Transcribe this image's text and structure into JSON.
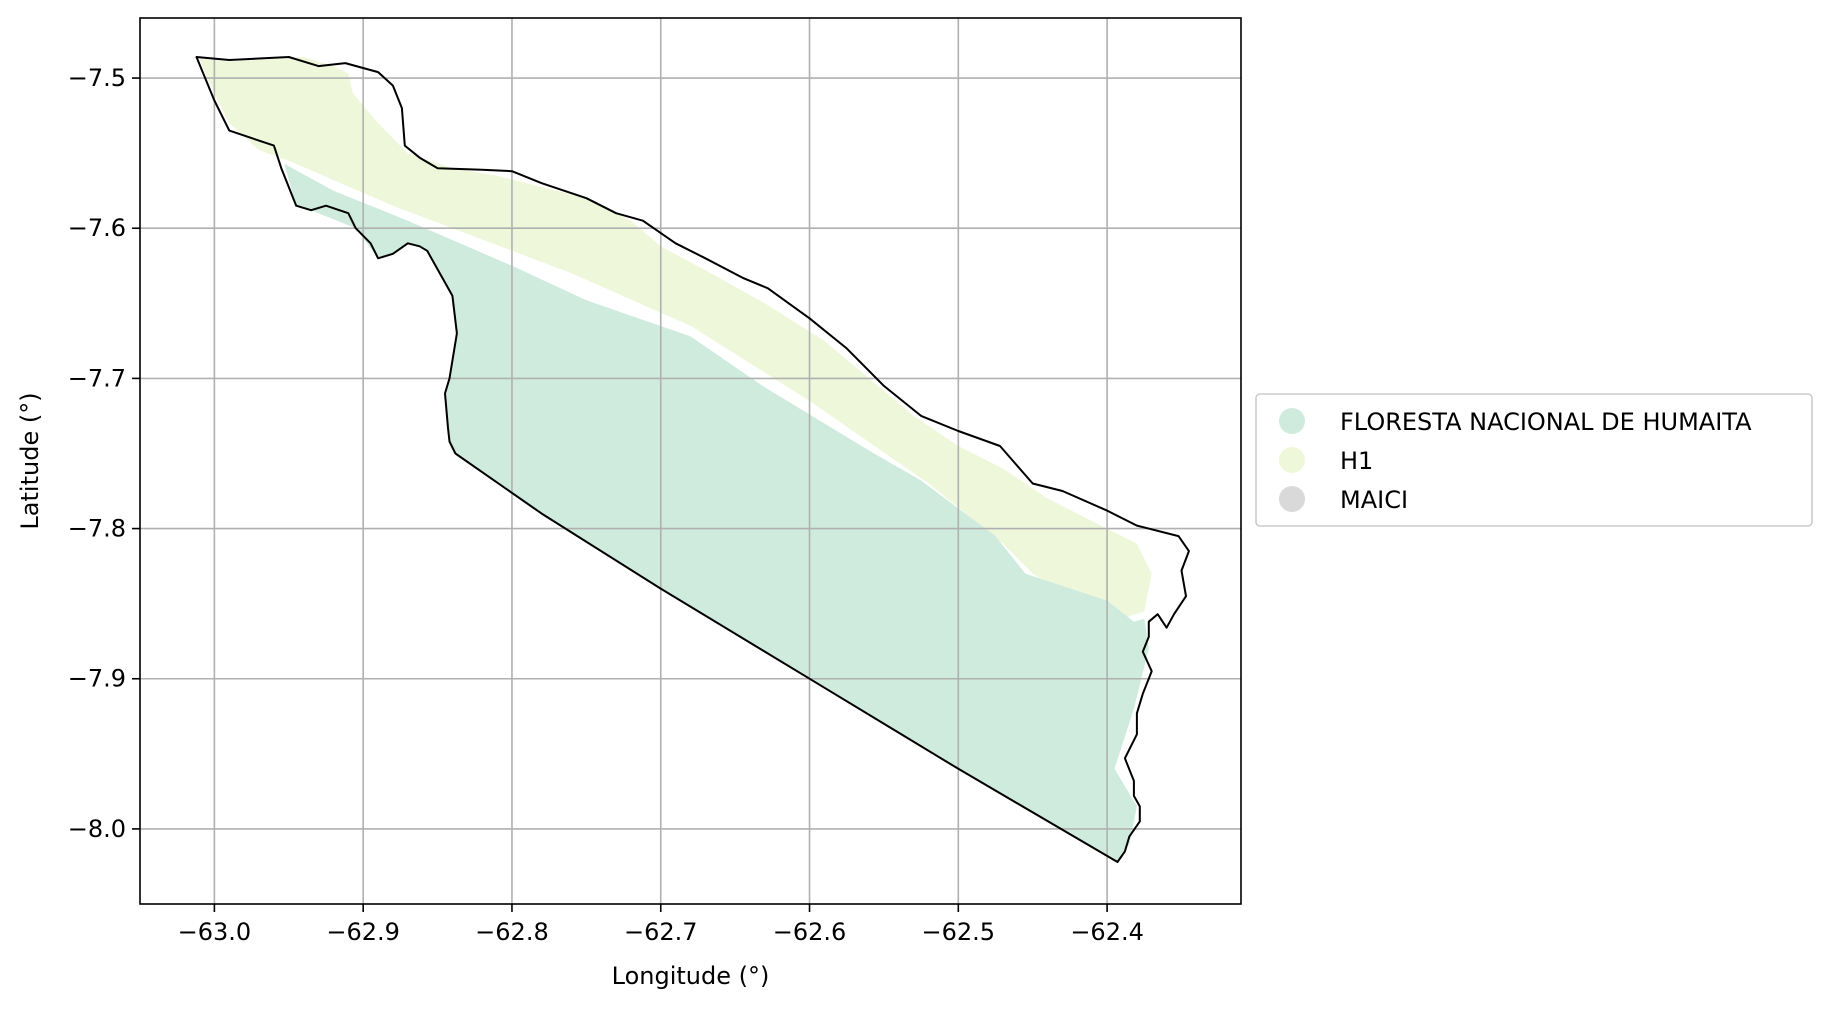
{
  "chart_data": {
    "type": "map",
    "xlabel": "Longitude (°)",
    "ylabel": "Latitude (°)",
    "xlim": [
      -63.05,
      -62.31
    ],
    "ylim": [
      -8.05,
      -7.46
    ],
    "grid": true,
    "x_ticks": [
      {
        "value": -63.0,
        "label": "−63.0"
      },
      {
        "value": -62.9,
        "label": "−62.9"
      },
      {
        "value": -62.8,
        "label": "−62.8"
      },
      {
        "value": -62.7,
        "label": "−62.7"
      },
      {
        "value": -62.6,
        "label": "−62.6"
      },
      {
        "value": -62.5,
        "label": "−62.5"
      },
      {
        "value": -62.4,
        "label": "−62.4"
      }
    ],
    "y_ticks": [
      {
        "value": -7.5,
        "label": "−7.5"
      },
      {
        "value": -7.6,
        "label": "−7.6"
      },
      {
        "value": -7.7,
        "label": "−7.7"
      },
      {
        "value": -7.8,
        "label": "−7.8"
      },
      {
        "value": -7.9,
        "label": "−7.9"
      },
      {
        "value": -8.0,
        "label": "−8.0"
      }
    ],
    "legend_position": "center-right",
    "legend": [
      {
        "label": "FLORESTA NACIONAL DE HUMAITA",
        "color": "#cfebde"
      },
      {
        "label": "H1",
        "color": "#eef7da"
      },
      {
        "label": "MAICI",
        "color": "#d9d9d9"
      }
    ],
    "regions": [
      {
        "name": "H1",
        "color": "#eef7da",
        "coordinates": [
          [
            -63.01,
            -7.487
          ],
          [
            -62.99,
            -7.489
          ],
          [
            -62.94,
            -7.486
          ],
          [
            -62.92,
            -7.492
          ],
          [
            -62.91,
            -7.497
          ],
          [
            -62.907,
            -7.51
          ],
          [
            -62.89,
            -7.53
          ],
          [
            -62.87,
            -7.55
          ],
          [
            -62.84,
            -7.56
          ],
          [
            -62.81,
            -7.565
          ],
          [
            -62.79,
            -7.57
          ],
          [
            -62.75,
            -7.58
          ],
          [
            -62.72,
            -7.595
          ],
          [
            -62.7,
            -7.612
          ],
          [
            -62.67,
            -7.628
          ],
          [
            -62.63,
            -7.65
          ],
          [
            -62.59,
            -7.675
          ],
          [
            -62.56,
            -7.7
          ],
          [
            -62.53,
            -7.725
          ],
          [
            -62.5,
            -7.745
          ],
          [
            -62.47,
            -7.76
          ],
          [
            -62.44,
            -7.78
          ],
          [
            -62.41,
            -7.795
          ],
          [
            -62.38,
            -7.81
          ],
          [
            -62.37,
            -7.83
          ],
          [
            -62.375,
            -7.855
          ],
          [
            -62.39,
            -7.86
          ],
          [
            -62.42,
            -7.85
          ],
          [
            -62.45,
            -7.83
          ],
          [
            -62.47,
            -7.81
          ],
          [
            -62.52,
            -7.77
          ],
          [
            -62.6,
            -7.715
          ],
          [
            -62.68,
            -7.665
          ],
          [
            -62.76,
            -7.63
          ],
          [
            -62.88,
            -7.585
          ],
          [
            -62.95,
            -7.555
          ],
          [
            -62.97,
            -7.548
          ],
          [
            -62.99,
            -7.53
          ],
          [
            -63.005,
            -7.5
          ]
        ]
      },
      {
        "name": "FLORESTA NACIONAL DE HUMAITA",
        "color": "#cfebde",
        "coordinates": [
          [
            -62.953,
            -7.557
          ],
          [
            -62.92,
            -7.575
          ],
          [
            -62.87,
            -7.595
          ],
          [
            -62.8,
            -7.625
          ],
          [
            -62.75,
            -7.648
          ],
          [
            -62.68,
            -7.672
          ],
          [
            -62.63,
            -7.706
          ],
          [
            -62.56,
            -7.748
          ],
          [
            -62.525,
            -7.768
          ],
          [
            -62.475,
            -7.805
          ],
          [
            -62.455,
            -7.83
          ],
          [
            -62.4,
            -7.848
          ],
          [
            -62.382,
            -7.862
          ],
          [
            -62.375,
            -7.86
          ],
          [
            -62.372,
            -7.88
          ],
          [
            -62.382,
            -7.92
          ],
          [
            -62.395,
            -7.96
          ],
          [
            -62.38,
            -7.985
          ],
          [
            -62.385,
            -8.01
          ],
          [
            -62.393,
            -8.022
          ],
          [
            -62.5,
            -7.96
          ],
          [
            -62.6,
            -7.9
          ],
          [
            -62.7,
            -7.84
          ],
          [
            -62.78,
            -7.79
          ],
          [
            -62.838,
            -7.75
          ],
          [
            -62.842,
            -7.742
          ],
          [
            -62.843,
            -7.733
          ],
          [
            -62.845,
            -7.71
          ],
          [
            -62.842,
            -7.7
          ],
          [
            -62.837,
            -7.67
          ],
          [
            -62.84,
            -7.645
          ],
          [
            -62.857,
            -7.615
          ],
          [
            -62.862,
            -7.612
          ],
          [
            -62.87,
            -7.61
          ],
          [
            -62.88,
            -7.617
          ],
          [
            -62.89,
            -7.62
          ],
          [
            -62.905,
            -7.6
          ],
          [
            -62.935,
            -7.588
          ],
          [
            -62.945,
            -7.585
          ]
        ]
      }
    ],
    "boundary": {
      "name": "outline",
      "color": "#000000",
      "coordinates": [
        [
          -63.012,
          -7.486
        ],
        [
          -62.99,
          -7.488
        ],
        [
          -62.95,
          -7.486
        ],
        [
          -62.93,
          -7.492
        ],
        [
          -62.912,
          -7.49
        ],
        [
          -62.89,
          -7.496
        ],
        [
          -62.88,
          -7.505
        ],
        [
          -62.874,
          -7.52
        ],
        [
          -62.872,
          -7.545
        ],
        [
          -62.862,
          -7.553
        ],
        [
          -62.85,
          -7.56
        ],
        [
          -62.82,
          -7.561
        ],
        [
          -62.8,
          -7.562
        ],
        [
          -62.78,
          -7.57
        ],
        [
          -62.75,
          -7.58
        ],
        [
          -62.73,
          -7.59
        ],
        [
          -62.712,
          -7.595
        ],
        [
          -62.69,
          -7.61
        ],
        [
          -62.67,
          -7.62
        ],
        [
          -62.645,
          -7.633
        ],
        [
          -62.628,
          -7.64
        ],
        [
          -62.6,
          -7.66
        ],
        [
          -62.575,
          -7.68
        ],
        [
          -62.55,
          -7.705
        ],
        [
          -62.525,
          -7.725
        ],
        [
          -62.5,
          -7.735
        ],
        [
          -62.472,
          -7.745
        ],
        [
          -62.45,
          -7.77
        ],
        [
          -62.43,
          -7.775
        ],
        [
          -62.4,
          -7.788
        ],
        [
          -62.38,
          -7.798
        ],
        [
          -62.352,
          -7.805
        ],
        [
          -62.345,
          -7.815
        ],
        [
          -62.35,
          -7.828
        ],
        [
          -62.347,
          -7.845
        ],
        [
          -62.355,
          -7.857
        ],
        [
          -62.36,
          -7.866
        ],
        [
          -62.366,
          -7.857
        ],
        [
          -62.372,
          -7.862
        ],
        [
          -62.372,
          -7.872
        ],
        [
          -62.376,
          -7.882
        ],
        [
          -62.37,
          -7.895
        ],
        [
          -62.376,
          -7.91
        ],
        [
          -62.38,
          -7.923
        ],
        [
          -62.38,
          -7.937
        ],
        [
          -62.388,
          -7.953
        ],
        [
          -62.382,
          -7.968
        ],
        [
          -62.382,
          -7.978
        ],
        [
          -62.378,
          -7.985
        ],
        [
          -62.378,
          -7.995
        ],
        [
          -62.385,
          -8.005
        ],
        [
          -62.388,
          -8.015
        ],
        [
          -62.393,
          -8.022
        ],
        [
          -62.5,
          -7.96
        ],
        [
          -62.6,
          -7.9
        ],
        [
          -62.7,
          -7.84
        ],
        [
          -62.78,
          -7.79
        ],
        [
          -62.838,
          -7.75
        ],
        [
          -62.842,
          -7.742
        ],
        [
          -62.843,
          -7.733
        ],
        [
          -62.845,
          -7.71
        ],
        [
          -62.842,
          -7.7
        ],
        [
          -62.837,
          -7.67
        ],
        [
          -62.84,
          -7.645
        ],
        [
          -62.857,
          -7.615
        ],
        [
          -62.862,
          -7.612
        ],
        [
          -62.87,
          -7.61
        ],
        [
          -62.88,
          -7.617
        ],
        [
          -62.89,
          -7.62
        ],
        [
          -62.895,
          -7.61
        ],
        [
          -62.905,
          -7.6
        ],
        [
          -62.91,
          -7.59
        ],
        [
          -62.925,
          -7.585
        ],
        [
          -62.935,
          -7.588
        ],
        [
          -62.945,
          -7.585
        ],
        [
          -62.955,
          -7.56
        ],
        [
          -62.96,
          -7.545
        ],
        [
          -62.975,
          -7.54
        ],
        [
          -62.99,
          -7.535
        ],
        [
          -63.0,
          -7.515
        ]
      ]
    }
  }
}
